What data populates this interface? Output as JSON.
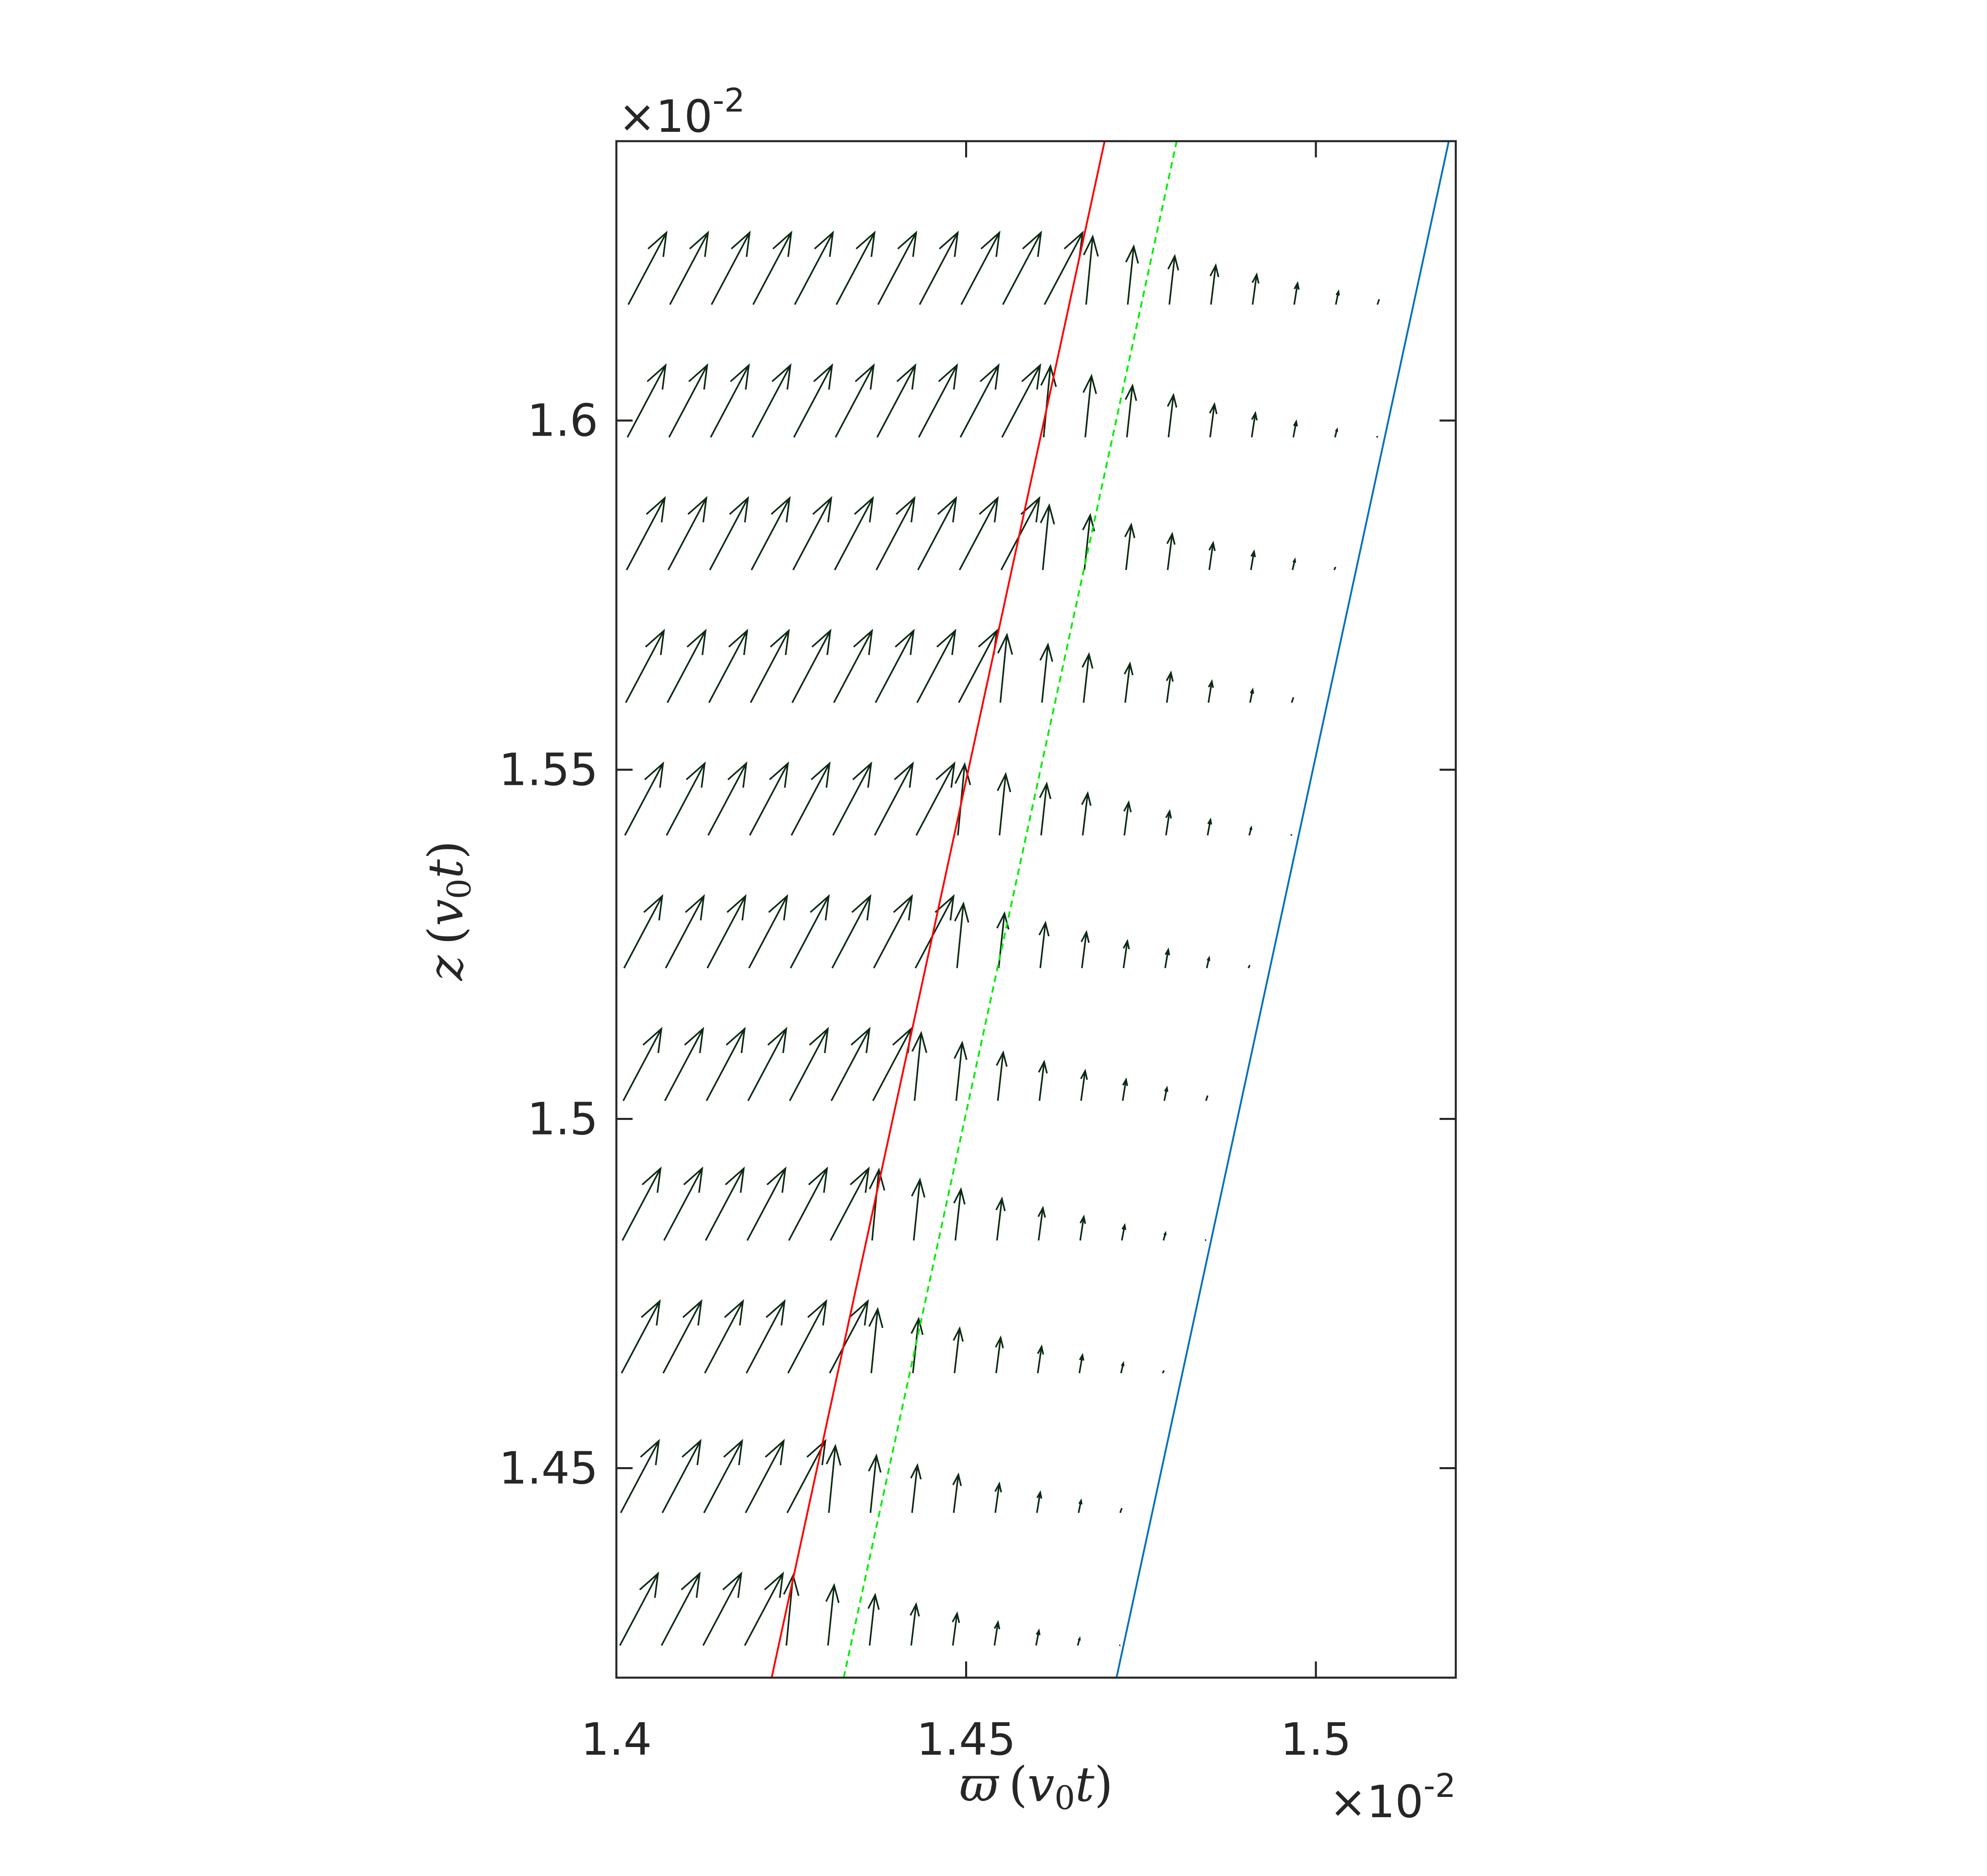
{
  "chart_data": {
    "type": "quiver",
    "title": "",
    "xlabel": "ϖ (v0t)",
    "ylabel": "z (v0t)",
    "x_scale_label": {
      "times": "×10",
      "exp": "-2"
    },
    "y_scale_label": {
      "times": "×10",
      "exp": "-2"
    },
    "xlim": [
      1.4,
      1.52
    ],
    "ylim": [
      1.42,
      1.64
    ],
    "x_ticks": [
      1.4,
      1.45,
      1.5
    ],
    "y_ticks": [
      1.45,
      1.5,
      1.55,
      1.6
    ],
    "x_tick_labels": [
      "1.4",
      "1.45",
      "1.5"
    ],
    "y_tick_labels": [
      "1.45",
      "1.5",
      "1.55",
      "1.6"
    ],
    "grid": false,
    "legend": "none",
    "colors": {
      "arrows": "#0d2b14",
      "red_line": "#ff0000",
      "green_line": "#00ee00",
      "blue_line": "#0072bd",
      "axes": "#262626"
    },
    "lines": [
      {
        "style": "solid",
        "color": "#ff0000",
        "points": [
          [
            1.4222,
            1.42
          ],
          [
            1.4698,
            1.64
          ]
        ]
      },
      {
        "style": "dashed",
        "color": "#00ee00",
        "points": [
          [
            1.4325,
            1.42
          ],
          [
            1.4801,
            1.64
          ]
        ]
      },
      {
        "style": "solid",
        "color": "#0072bd",
        "points": [
          [
            1.4715,
            1.42
          ],
          [
            1.519,
            1.64
          ]
        ]
      }
    ],
    "quiver": {
      "rows_z": [
        1.4246,
        1.4436,
        1.4636,
        1.4826,
        1.5026,
        1.5216,
        1.5406,
        1.5596,
        1.5786,
        1.5976,
        1.6166
      ],
      "dx": 0.00595,
      "dz_bottom": 0.0118,
      "dz_top": 0.012,
      "x_start": 1.4005,
      "x_offset_step": 0.00012,
      "max_dwx": 0.00545,
      "max_dz": 0.0103
    }
  }
}
